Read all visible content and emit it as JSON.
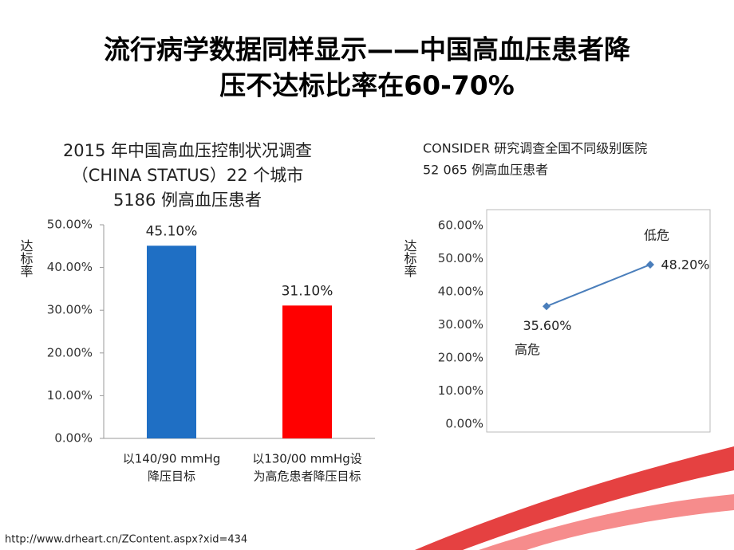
{
  "title": [
    "流行病学数据同样显示——中国高血压患者降",
    "压不达标比率在60-70%"
  ],
  "footer": "http://www.drheart.cn/ZContent.aspx?xid=434",
  "chart_data": [
    {
      "type": "bar",
      "title": [
        "2015 年中国高血压控制状况调查",
        "（CHINA STATUS）22 个城市",
        "5186 例高血压患者"
      ],
      "ylabel": "达标率",
      "categories": [
        [
          "以140/90 mmHg",
          "降压目标"
        ],
        [
          "以130/00 mmHg设",
          "为高危患者降压目标"
        ]
      ],
      "values": [
        45.1,
        31.1
      ],
      "value_labels": [
        "45.10%",
        "31.10%"
      ],
      "colors": [
        "#1f6fc4",
        "#ff0000"
      ],
      "ylim": [
        0,
        50
      ],
      "yticks": [
        {
          "value": 0,
          "label": "0.00%"
        },
        {
          "value": 10,
          "label": "10.00%"
        },
        {
          "value": 20,
          "label": "20.00%"
        },
        {
          "value": 30,
          "label": "30.00%"
        },
        {
          "value": 40,
          "label": "40.00%"
        },
        {
          "value": 50,
          "label": "50.00%"
        }
      ],
      "grid": false
    },
    {
      "type": "line",
      "title": [
        "CONSIDER 研究调查全国不同级别医院",
        "52 065 例高血压患者"
      ],
      "ylabel": "达标率",
      "categories": [
        "高危",
        "低危"
      ],
      "values": [
        35.6,
        48.2
      ],
      "value_labels": [
        "35.60%",
        "48.20%"
      ],
      "color": "#4a7ebb",
      "ylim": [
        0,
        60
      ],
      "yticks": [
        {
          "value": 0,
          "label": "0.00%"
        },
        {
          "value": 10,
          "label": "10.00%"
        },
        {
          "value": 20,
          "label": "20.00%"
        },
        {
          "value": 30,
          "label": "30.00%"
        },
        {
          "value": 40,
          "label": "40.00%"
        },
        {
          "value": 50,
          "label": "50.00%"
        },
        {
          "value": 60,
          "label": "60.00%"
        }
      ],
      "grid": false
    }
  ]
}
